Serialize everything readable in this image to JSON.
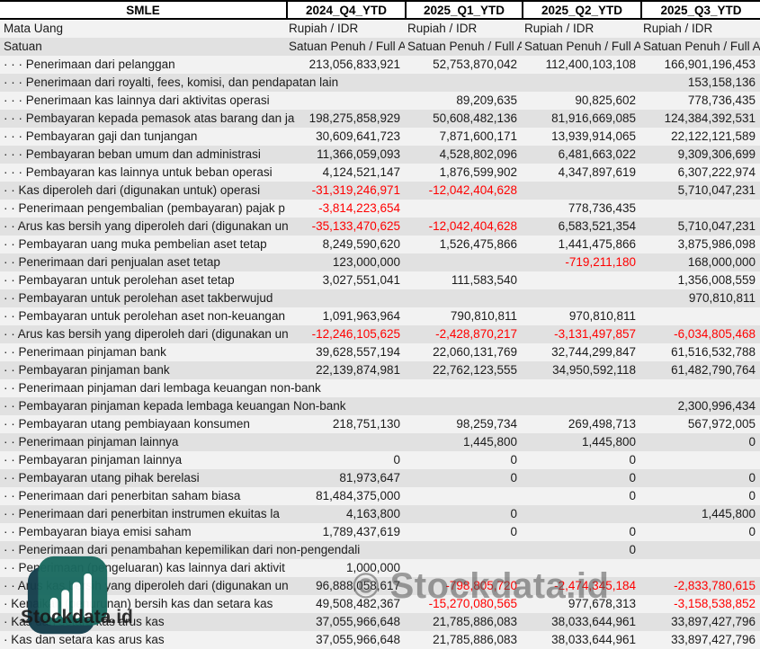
{
  "sheet": {
    "entity": "SMLE",
    "periods": [
      "2024_Q4_YTD",
      "2025_Q1_YTD",
      "2025_Q2_YTD",
      "2025_Q3_YTD"
    ],
    "meta_rows": [
      {
        "label": "Mata Uang",
        "values": [
          "Rupiah / IDR",
          "Rupiah / IDR",
          "Rupiah / IDR",
          "Rupiah / IDR"
        ]
      },
      {
        "label": "Satuan",
        "values": [
          "Satuan Penuh / Full A",
          "Satuan Penuh / Full A",
          "Satuan Penuh / Full A",
          "Satuan Penuh / Full A"
        ]
      }
    ],
    "rows": [
      {
        "indent": 3,
        "label": "Penerimaan dari pelanggan",
        "values": [
          "213,056,833,921",
          "52,753,870,042",
          "112,400,103,108",
          "166,901,196,453"
        ]
      },
      {
        "indent": 3,
        "label": "Penerimaan dari royalti, fees, komisi, dan pendapatan lain",
        "values": [
          "",
          "",
          "",
          "153,158,136"
        ]
      },
      {
        "indent": 3,
        "label": "Penerimaan kas lainnya dari aktivitas operasi",
        "values": [
          "",
          "89,209,635",
          "90,825,602",
          "778,736,435"
        ]
      },
      {
        "indent": 3,
        "label": "Pembayaran kepada pemasok atas barang dan ja",
        "values": [
          "198,275,858,929",
          "50,608,482,136",
          "81,916,669,085",
          "124,384,392,531"
        ]
      },
      {
        "indent": 3,
        "label": "Pembayaran gaji dan tunjangan",
        "values": [
          "30,609,641,723",
          "7,871,600,171",
          "13,939,914,065",
          "22,122,121,589"
        ]
      },
      {
        "indent": 3,
        "label": "Pembayaran beban umum dan administrasi",
        "values": [
          "11,366,059,093",
          "4,528,802,096",
          "6,481,663,022",
          "9,309,306,699"
        ]
      },
      {
        "indent": 3,
        "label": "Pembayaran kas lainnya untuk beban operasi",
        "values": [
          "4,124,521,147",
          "1,876,599,902",
          "4,347,897,619",
          "6,307,222,974"
        ]
      },
      {
        "indent": 2,
        "label": "Kas diperoleh dari (digunakan untuk) operasi",
        "values": [
          "-31,319,246,971",
          "-12,042,404,628",
          "",
          "5,710,047,231"
        ]
      },
      {
        "indent": 2,
        "label": "Penerimaan pengembalian (pembayaran) pajak p",
        "values": [
          "-3,814,223,654",
          "",
          "778,736,435",
          ""
        ]
      },
      {
        "indent": 2,
        "label": "Arus kas bersih yang diperoleh dari (digunakan un",
        "values": [
          "-35,133,470,625",
          "-12,042,404,628",
          "6,583,521,354",
          "5,710,047,231"
        ]
      },
      {
        "indent": 2,
        "label": "Pembayaran uang muka pembelian aset tetap",
        "values": [
          "8,249,590,620",
          "1,526,475,866",
          "1,441,475,866",
          "3,875,986,098"
        ]
      },
      {
        "indent": 2,
        "label": "Penerimaan dari penjualan aset tetap",
        "values": [
          "123,000,000",
          "",
          "-719,211,180",
          "168,000,000"
        ]
      },
      {
        "indent": 2,
        "label": "Pembayaran untuk perolehan aset tetap",
        "values": [
          "3,027,551,041",
          "111,583,540",
          "",
          "1,356,008,559"
        ]
      },
      {
        "indent": 2,
        "label": "Pembayaran untuk perolehan aset takberwujud",
        "values": [
          "",
          "",
          "",
          "970,810,811"
        ]
      },
      {
        "indent": 2,
        "label": "Pembayaran untuk perolehan aset non-keuangan",
        "values": [
          "1,091,963,964",
          "790,810,811",
          "970,810,811",
          ""
        ]
      },
      {
        "indent": 2,
        "label": "Arus kas bersih yang diperoleh dari (digunakan un",
        "values": [
          "-12,246,105,625",
          "-2,428,870,217",
          "-3,131,497,857",
          "-6,034,805,468"
        ]
      },
      {
        "indent": 2,
        "label": "Penerimaan pinjaman bank",
        "values": [
          "39,628,557,194",
          "22,060,131,769",
          "32,744,299,847",
          "61,516,532,788"
        ]
      },
      {
        "indent": 2,
        "label": "Pembayaran pinjaman bank",
        "values": [
          "22,139,874,981",
          "22,762,123,555",
          "34,950,592,118",
          "61,482,790,764"
        ]
      },
      {
        "indent": 2,
        "label": "Penerimaan pinjaman dari lembaga keuangan non-bank",
        "values": [
          "",
          "",
          "",
          ""
        ]
      },
      {
        "indent": 2,
        "label": "Pembayaran pinjaman kepada lembaga keuangan Non-bank",
        "values": [
          "",
          "",
          "",
          "2,300,996,434"
        ]
      },
      {
        "indent": 2,
        "label": "Pembayaran utang pembiayaan konsumen",
        "values": [
          "218,751,130",
          "98,259,734",
          "269,498,713",
          "567,972,005"
        ]
      },
      {
        "indent": 2,
        "label": "Penerimaan pinjaman lainnya",
        "values": [
          "",
          "1,445,800",
          "1,445,800",
          "0"
        ]
      },
      {
        "indent": 2,
        "label": "Pembayaran pinjaman lainnya",
        "values": [
          "0",
          "0",
          "0",
          ""
        ]
      },
      {
        "indent": 2,
        "label": "Pembayaran utang pihak berelasi",
        "values": [
          "81,973,647",
          "0",
          "0",
          "0"
        ]
      },
      {
        "indent": 2,
        "label": "Penerimaan dari penerbitan saham biasa",
        "values": [
          "81,484,375,000",
          "",
          "0",
          "0"
        ]
      },
      {
        "indent": 2,
        "label": "Penerimaan dari penerbitan instrumen ekuitas la",
        "values": [
          "4,163,800",
          "0",
          "",
          "1,445,800"
        ]
      },
      {
        "indent": 2,
        "label": "Pembayaran biaya emisi saham",
        "values": [
          "1,789,437,619",
          "0",
          "0",
          "0"
        ]
      },
      {
        "indent": 2,
        "label": "Penerimaan dari penambahan kepemilikan dari non-pengendali",
        "values": [
          "",
          "",
          "0",
          ""
        ]
      },
      {
        "indent": 2,
        "label": "Penerimaan (pengeluaran) kas lainnya dari aktivit",
        "values": [
          "1,000,000",
          "",
          "",
          ""
        ]
      },
      {
        "indent": 2,
        "label": "Arus kas bersih yang diperoleh dari (digunakan un",
        "values": [
          "96,888,058,617",
          "-798,805,720",
          "-2,474,345,184",
          "-2,833,780,615"
        ]
      },
      {
        "indent": 1,
        "label": "Kenaikan (penurunan) bersih kas dan setara kas",
        "values": [
          "49,508,482,367",
          "-15,270,080,565",
          "977,678,313",
          "-3,158,538,852"
        ]
      },
      {
        "indent": 1,
        "label": "Kas dan setara kas arus kas",
        "values": [
          "37,055,966,648",
          "21,785,886,083",
          "38,033,644,961",
          "33,897,427,796"
        ]
      },
      {
        "indent": 1,
        "label": "Kas dan setara kas arus kas",
        "values": [
          "37,055,966,648",
          "21,785,886,083",
          "38,033,644,961",
          "33,897,427,796"
        ]
      }
    ]
  },
  "watermark": {
    "center": "© Stockdata.id",
    "brand": "Stockdata.id",
    "logo": "bar-chart-logo"
  },
  "colors": {
    "row_light": "#f2f2f2",
    "row_dark": "#e1e1e1",
    "negative_text": "#ff0000",
    "logo_dark": "#143e4c",
    "logo_teal": "#1a6a60"
  }
}
